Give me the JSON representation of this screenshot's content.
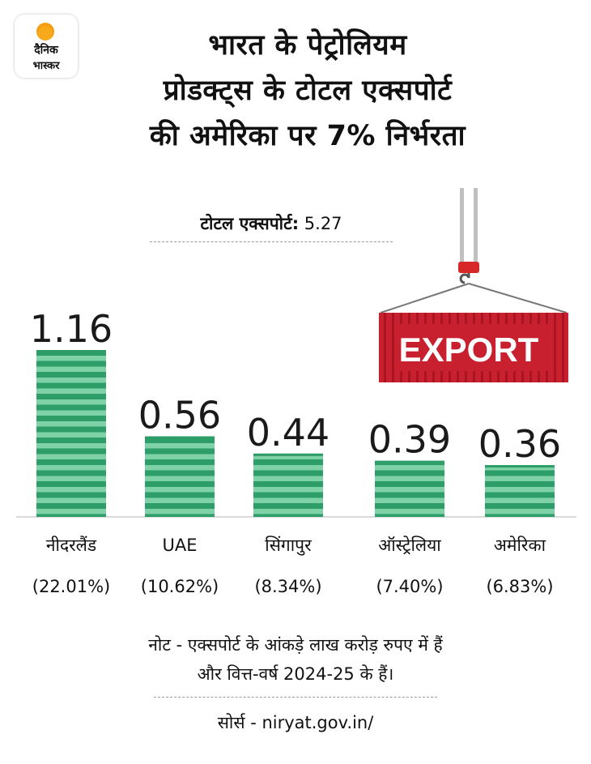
{
  "logo": {
    "line1": "दैनिक",
    "line2": "भास्कर"
  },
  "title": {
    "line1": "भारत के पेट्रोलियम",
    "line2": "प्रोडक्ट्स के टोटल एक्सपोर्ट",
    "line3": "की अमेरिका पर 7% निर्भरता"
  },
  "total": {
    "label": "टोटल एक्सपोर्ट:",
    "value": "5.27"
  },
  "container_label": "EXPORT",
  "colors": {
    "bar": "#2e9e68",
    "bar_stripe": "#7fd1a8",
    "container": "#c8202f",
    "crane_hook": "#d62828"
  },
  "chart_data": {
    "type": "bar",
    "categories": [
      "नीदरलैंड",
      "UAE",
      "सिंगापुर",
      "ऑस्ट्रेलिया",
      "अमेरिका"
    ],
    "values": [
      1.16,
      0.56,
      0.44,
      0.39,
      0.36
    ],
    "value_labels": [
      "1.16",
      "0.56",
      "0.44",
      "0.39",
      "0.36"
    ],
    "shares": [
      "(22.01%)",
      "(10.62%)",
      "(8.34%)",
      "(7.40%)",
      "(6.83%)"
    ],
    "ylim": [
      0,
      1.16
    ]
  },
  "note": {
    "line1": "नोट - एक्सपोर्ट के आंकड़े लाख करोड़ रुपए में हैं",
    "line2": "और वित्त-वर्ष 2024-25 के हैं।"
  },
  "source": "सोर्स - niryat.gov.in/"
}
